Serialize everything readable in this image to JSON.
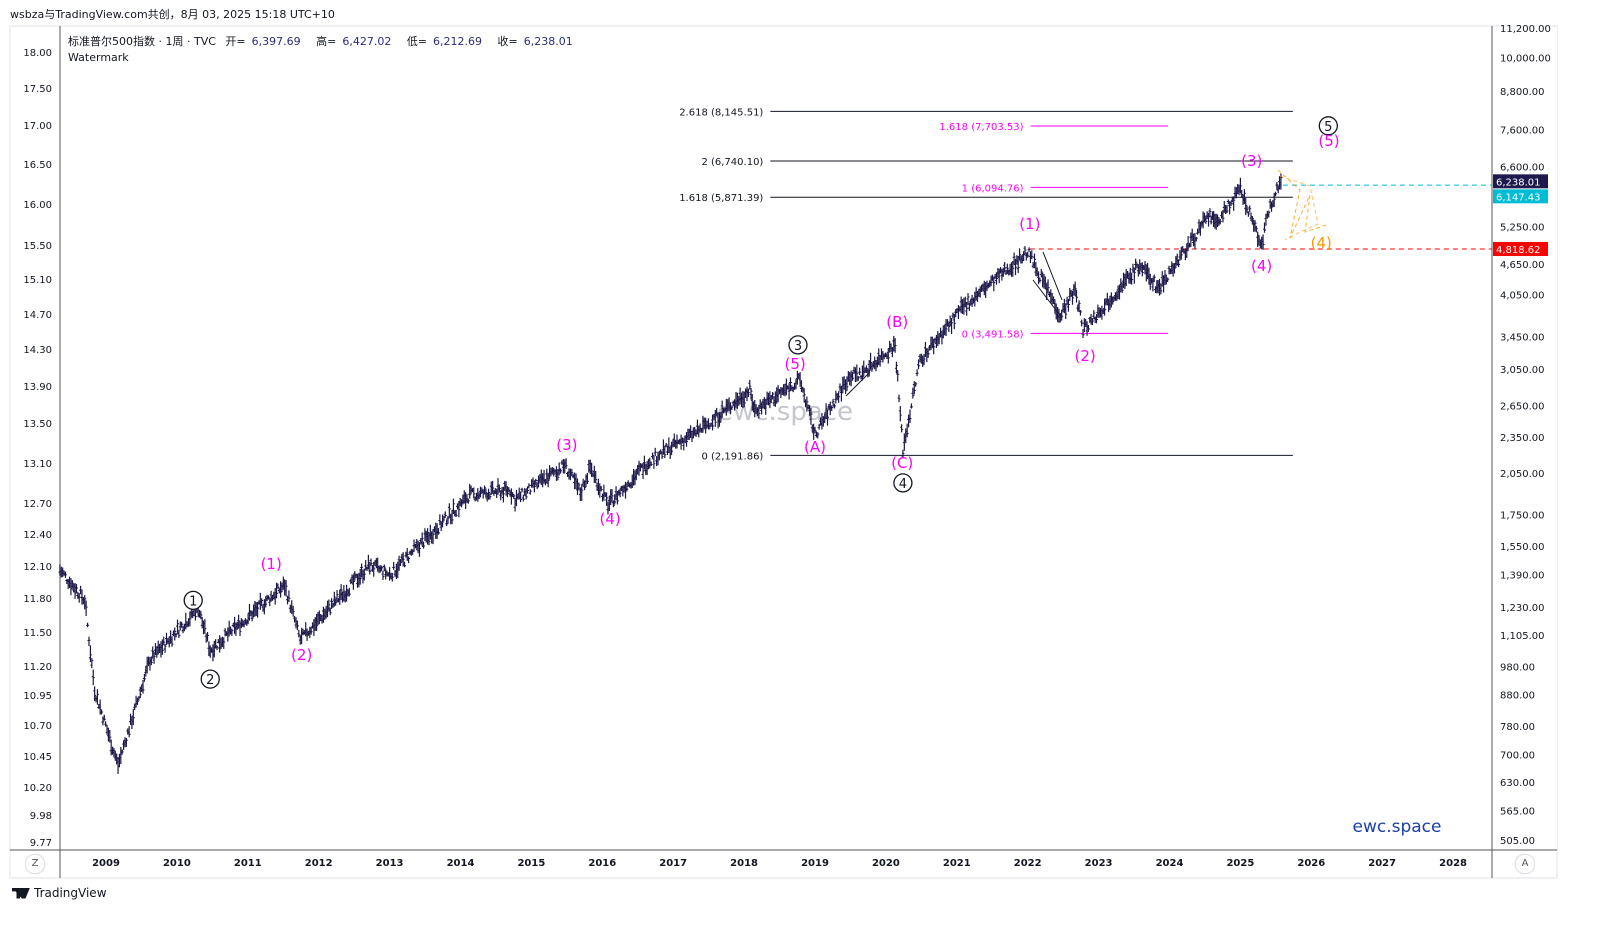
{
  "topline": "wsbza与TradingView.com共创，8月 03, 2025 15:18 UTC+10",
  "header": {
    "symbol": "标准普尔500指数 · 1周 · TVC",
    "open_label": "开=",
    "open": "6,397.69",
    "high_label": "高=",
    "high": "6,427.02",
    "low_label": "低=",
    "low": "6,212.69",
    "close_label": "收=",
    "close": "6,238.01",
    "watermark_label": "Watermark"
  },
  "footer": {
    "brand": "TradingView",
    "left_button": "Z",
    "right_button": "A"
  },
  "watermarks": {
    "center": "ewc.space",
    "corner": "ewc.space"
  },
  "colors": {
    "bars": "#1b1748",
    "magenta": "#ff00ff",
    "orange": "#ff9800",
    "cyan": "#00bcd4",
    "red": "#ff0000",
    "last_price_bg": "#1e1a4d",
    "corner_wm": "#1a3fa8"
  },
  "chart_data": {
    "type": "ohlc-bar",
    "title": "标准普尔500指数 · 1周 · TVC",
    "scale": "log",
    "ylim": [
      505,
      11200
    ],
    "xlim": [
      2008.35,
      2028.5
    ],
    "x_ticks": [
      "2009",
      "2010",
      "2011",
      "2012",
      "2013",
      "2014",
      "2015",
      "2016",
      "2017",
      "2018",
      "2019",
      "2020",
      "2021",
      "2022",
      "2023",
      "2024",
      "2025",
      "2026",
      "2027",
      "2028"
    ],
    "right_ticks": [
      "11,200.00",
      "10,000.00",
      "8,800.00",
      "7,600.00",
      "6,600.00",
      "5,250.00",
      "4,650.00",
      "4,050.00",
      "3,450.00",
      "3,050.00",
      "2,650.00",
      "2,350.00",
      "2,050.00",
      "1,750.00",
      "1,550.00",
      "1,390.00",
      "1,230.00",
      "1,105.00",
      "980.00",
      "880.00",
      "780.00",
      "700.00",
      "630.00",
      "565.00",
      "505.00"
    ],
    "left_ticks": [
      "18.00",
      "17.50",
      "17.00",
      "16.50",
      "16.00",
      "15.50",
      "15.10",
      "14.70",
      "14.30",
      "13.90",
      "13.50",
      "13.10",
      "12.70",
      "12.40",
      "12.10",
      "11.80",
      "11.50",
      "11.20",
      "10.95",
      "10.70",
      "10.45",
      "10.20",
      "9.98",
      "9.77"
    ],
    "price_path": [
      [
        2008.35,
        1416
      ],
      [
        2008.7,
        1263
      ],
      [
        2008.84,
        896
      ],
      [
        2009.17,
        672
      ],
      [
        2009.62,
        1004
      ],
      [
        2010.3,
        1224
      ],
      [
        2010.47,
        1043
      ],
      [
        2011.52,
        1336
      ],
      [
        2011.74,
        1084
      ],
      [
        2012.72,
        1443
      ],
      [
        2013.0,
        1389
      ],
      [
        2014.13,
        1884
      ],
      [
        2014.7,
        1920
      ],
      [
        2014.77,
        1848
      ],
      [
        2015.47,
        2113
      ],
      [
        2015.69,
        1900
      ],
      [
        2015.83,
        2097
      ],
      [
        2016.08,
        1815
      ],
      [
        2016.67,
        2154
      ],
      [
        2017.38,
        2415
      ],
      [
        2018.08,
        2815
      ],
      [
        2018.15,
        2605
      ],
      [
        2018.79,
        2923
      ],
      [
        2019.0,
        2368
      ],
      [
        2019.49,
        2980
      ],
      [
        2019.63,
        2980
      ],
      [
        2020.13,
        3342
      ],
      [
        2020.24,
        2238
      ],
      [
        2020.48,
        3158
      ],
      [
        2021.12,
        3890
      ],
      [
        2022.0,
        4770
      ],
      [
        2022.46,
        3745
      ],
      [
        2022.67,
        4120
      ],
      [
        2022.78,
        3540
      ],
      [
        2023.58,
        4535
      ],
      [
        2023.84,
        4150
      ],
      [
        2024.57,
        5490
      ],
      [
        2024.64,
        5285
      ],
      [
        2025.0,
        6040
      ],
      [
        2025.3,
        4890
      ],
      [
        2025.42,
        5710
      ],
      [
        2025.59,
        6316
      ]
    ],
    "last_price": {
      "value": 6238.01,
      "label": "6,238.01"
    },
    "price_lines": [
      {
        "value": 6147.43,
        "label": "6,147.43",
        "color": "#00bcd4",
        "from": 2025.6
      },
      {
        "value": 4818.62,
        "label": "4,818.62",
        "color": "#ff0000",
        "from": 2022.03
      }
    ],
    "fib_black": {
      "from": 2018.37,
      "to": 2025.74,
      "levels": [
        {
          "value": 8145.51,
          "label": "2.618 (8,145.51)"
        },
        {
          "value": 6740.1,
          "label": "2 (6,740.10)"
        },
        {
          "value": 5871.39,
          "label": "1.618 (5,871.39)"
        },
        {
          "value": 2191.86,
          "label": "0 (2,191.86)"
        }
      ]
    },
    "fib_magenta": {
      "from": 2022.04,
      "to": 2023.98,
      "levels": [
        {
          "value": 7703.53,
          "label": "1.618 (7,703.53)"
        },
        {
          "value": 6094.76,
          "label": "1 (6,094.76)"
        },
        {
          "value": 3491.58,
          "label": "0 (3,491.58)"
        }
      ]
    },
    "wave_labels": [
      {
        "text": "1",
        "style": "circle",
        "date": 2010.23,
        "price": 1275
      },
      {
        "text": "2",
        "style": "circle",
        "date": 2010.47,
        "price": 944
      },
      {
        "text": "3",
        "style": "circle",
        "date": 2018.76,
        "price": 3380
      },
      {
        "text": "4",
        "style": "circle",
        "date": 2020.24,
        "price": 1996
      },
      {
        "text": "5",
        "style": "circle",
        "date": 2026.24,
        "price": 7800
      },
      {
        "text": "(1)",
        "style": "magenta",
        "date": 2011.33,
        "price": 1437
      },
      {
        "text": "(2)",
        "style": "magenta",
        "date": 2011.76,
        "price": 1015
      },
      {
        "text": "(3)",
        "style": "magenta",
        "date": 2015.5,
        "price": 2265
      },
      {
        "text": "(4)",
        "style": "magenta",
        "date": 2016.11,
        "price": 1706
      },
      {
        "text": "(5)",
        "style": "magenta",
        "date": 2018.72,
        "price": 3085
      },
      {
        "text": "(A)",
        "style": "magenta",
        "date": 2019.0,
        "price": 2246
      },
      {
        "text": "(B)",
        "style": "magenta",
        "date": 2020.16,
        "price": 3620
      },
      {
        "text": "(C)",
        "style": "magenta",
        "date": 2020.23,
        "price": 2113
      },
      {
        "text": "(1)",
        "style": "magenta",
        "date": 2022.03,
        "price": 5260
      },
      {
        "text": "(2)",
        "style": "magenta",
        "date": 2022.81,
        "price": 3180
      },
      {
        "text": "(3)",
        "style": "magenta",
        "date": 2025.16,
        "price": 6690
      },
      {
        "text": "(4)",
        "style": "magenta",
        "date": 2025.3,
        "price": 4480
      },
      {
        "text": "(5)",
        "style": "magenta",
        "date": 2026.25,
        "price": 7220
      },
      {
        "text": "(4)",
        "style": "orange",
        "date": 2026.14,
        "price": 4890
      }
    ]
  }
}
